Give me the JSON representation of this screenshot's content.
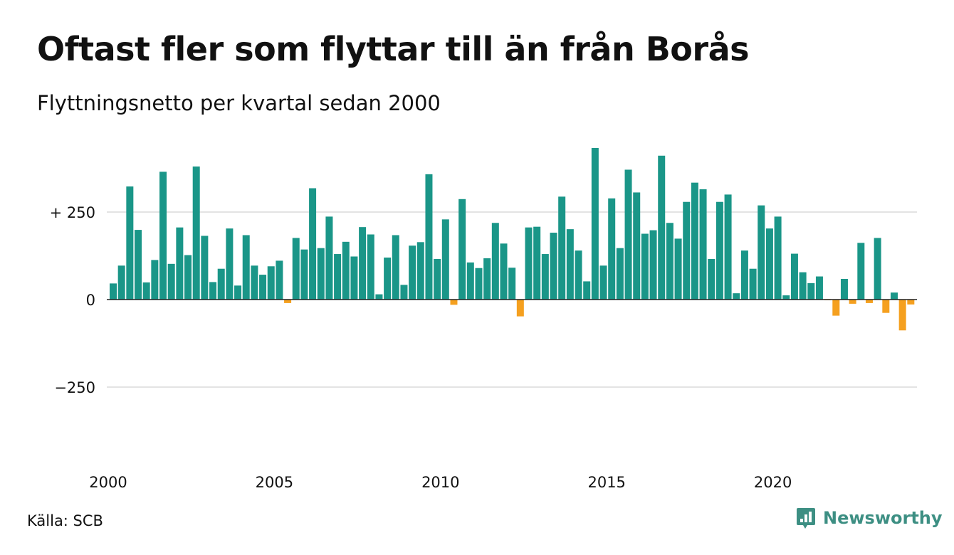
{
  "title": "Oftast fler som flyttar till än från Borås",
  "subtitle": "Flyttningsnetto per kvartal sedan 2000",
  "source": "Källa: SCB",
  "brand": {
    "name": "Newsworthy",
    "icon": "newsworthy-logo-icon"
  },
  "colors": {
    "positive": "#1a9688",
    "negative": "#f5a01f",
    "grid": "#e3e3e3",
    "zero_line": "#222222",
    "brand": "#3d8f83"
  },
  "chart_data": {
    "type": "bar",
    "title": "Oftast fler som flyttar till än från Borås",
    "subtitle": "Flyttningsnetto per kvartal sedan 2000",
    "xlabel": "",
    "ylabel": "",
    "ylim": [
      -460,
      440
    ],
    "grid": true,
    "y_ticks": [
      {
        "value": 250,
        "label": "+ 250"
      },
      {
        "value": 0,
        "label": "0"
      },
      {
        "value": -250,
        "label": "−250"
      }
    ],
    "x_ticks": [
      "2000",
      "2005",
      "2010",
      "2015",
      "2020"
    ],
    "start_year": 2000,
    "periods_per_year": 4,
    "values": [
      46,
      97,
      323,
      199,
      49,
      113,
      365,
      102,
      206,
      127,
      380,
      182,
      50,
      88,
      203,
      40,
      184,
      97,
      71,
      95,
      111,
      -10,
      176,
      143,
      318,
      147,
      237,
      130,
      165,
      123,
      207,
      186,
      15,
      120,
      184,
      42,
      154,
      164,
      358,
      116,
      229,
      -15,
      287,
      106,
      90,
      118,
      219,
      160,
      91,
      -48,
      206,
      208,
      130,
      191,
      294,
      201,
      140,
      52,
      433,
      97,
      289,
      147,
      371,
      306,
      188,
      198,
      411,
      219,
      174,
      279,
      334,
      315,
      116,
      279,
      300,
      18,
      140,
      88,
      269,
      203,
      237,
      12,
      131,
      78,
      47,
      66,
      -2,
      -46,
      59,
      -12,
      162,
      -10,
      176,
      -38,
      20,
      -88,
      -14
    ]
  }
}
